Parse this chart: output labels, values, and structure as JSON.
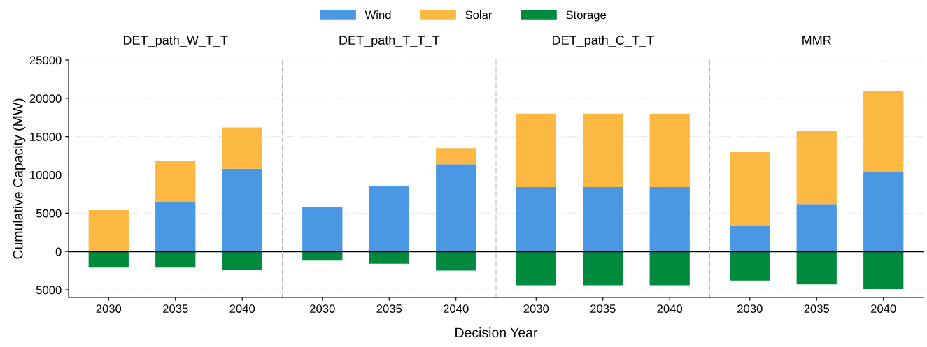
{
  "chart_data": [
    {
      "type": "bar",
      "stacked": true,
      "title": "DET_path_W_T_T",
      "annotations": [
        "Decision Year"
      ],
      "ylabel": "Cumulative Capacity (MW)",
      "categories": [
        "2030",
        "2035",
        "2040"
      ],
      "series": [
        {
          "name": "Wind",
          "color": "#4a98e3",
          "values": [
            0,
            6400,
            10800
          ]
        },
        {
          "name": "Solar",
          "color": "#fbb944",
          "values": [
            5400,
            5400,
            5400
          ]
        },
        {
          "name": "Storage",
          "color": "#008a3e",
          "values": [
            -2100,
            -2100,
            -2400
          ]
        }
      ],
      "ylim": [
        -6000,
        25000
      ],
      "yticks": [
        {
          "value": -5000,
          "label": "5000"
        },
        0,
        5000,
        10000,
        15000,
        20000,
        25000
      ],
      "grid": "y",
      "legend": "top",
      "ref_lines": [
        {
          "axis": "y",
          "value": 0,
          "color": "#000000"
        }
      ]
    },
    {
      "type": "bar",
      "stacked": true,
      "title": "DET_path_T_T_T",
      "categories": [
        "2030",
        "2035",
        "2040"
      ],
      "series": [
        {
          "color": "#4a98e3",
          "values": [
            5800,
            8500,
            11400
          ]
        },
        {
          "color": "#fbb944",
          "values": [
            0,
            0,
            2100
          ]
        },
        {
          "color": "#008a3e",
          "values": [
            -1200,
            -1600,
            -2500
          ]
        }
      ],
      "ylim": [
        -6000,
        25000
      ],
      "yticks": [
        {
          "value": -5000,
          "label": null
        },
        {
          "value": 0,
          "label": null
        },
        {
          "value": 5000,
          "label": null
        },
        {
          "value": 10000,
          "label": null
        },
        {
          "value": 15000,
          "label": null
        },
        {
          "value": 20000,
          "label": null
        },
        {
          "value": 25000,
          "label": null
        }
      ],
      "grid": "y",
      "tick_labels": "x",
      "ref_lines": [
        {
          "axis": "y",
          "value": 0,
          "color": "#000000"
        }
      ]
    },
    {
      "type": "bar",
      "stacked": true,
      "title": "DET_path_C_T_T",
      "categories": [
        "2030",
        "2035",
        "2040"
      ],
      "series": [
        {
          "color": "#4a98e3",
          "values": [
            8400,
            8400,
            8400
          ]
        },
        {
          "color": "#fbb944",
          "values": [
            9600,
            9600,
            9600
          ]
        },
        {
          "color": "#008a3e",
          "values": [
            -4400,
            -4400,
            -4400
          ]
        }
      ],
      "ylim": [
        -6000,
        25000
      ],
      "yticks": [
        {
          "value": -5000,
          "label": null
        },
        {
          "value": 0,
          "label": null
        },
        {
          "value": 5000,
          "label": null
        },
        {
          "value": 10000,
          "label": null
        },
        {
          "value": 15000,
          "label": null
        },
        {
          "value": 20000,
          "label": null
        },
        {
          "value": 25000,
          "label": null
        }
      ],
      "grid": "y",
      "tick_labels": "x",
      "ref_lines": [
        {
          "axis": "y",
          "value": 0,
          "color": "#000000"
        }
      ]
    },
    {
      "type": "bar",
      "stacked": true,
      "title": "MMR",
      "categories": [
        "2030",
        "2035",
        "2040"
      ],
      "series": [
        {
          "color": "#4a98e3",
          "values": [
            3400,
            6200,
            10400
          ]
        },
        {
          "color": "#fbb944",
          "values": [
            9600,
            9600,
            10500
          ]
        },
        {
          "color": "#008a3e",
          "values": [
            -3800,
            -4300,
            -4900
          ]
        }
      ],
      "ylim": [
        -6000,
        25000
      ],
      "yticks": [
        {
          "value": -5000,
          "label": null
        },
        {
          "value": 0,
          "label": null
        },
        {
          "value": 5000,
          "label": null
        },
        {
          "value": 10000,
          "label": null
        },
        {
          "value": 15000,
          "label": null
        },
        {
          "value": 20000,
          "label": null
        },
        {
          "value": 25000,
          "label": null
        }
      ],
      "grid": "y",
      "tick_labels": "x",
      "ref_lines": [
        {
          "axis": "y",
          "value": 0,
          "color": "#000000"
        }
      ]
    }
  ]
}
